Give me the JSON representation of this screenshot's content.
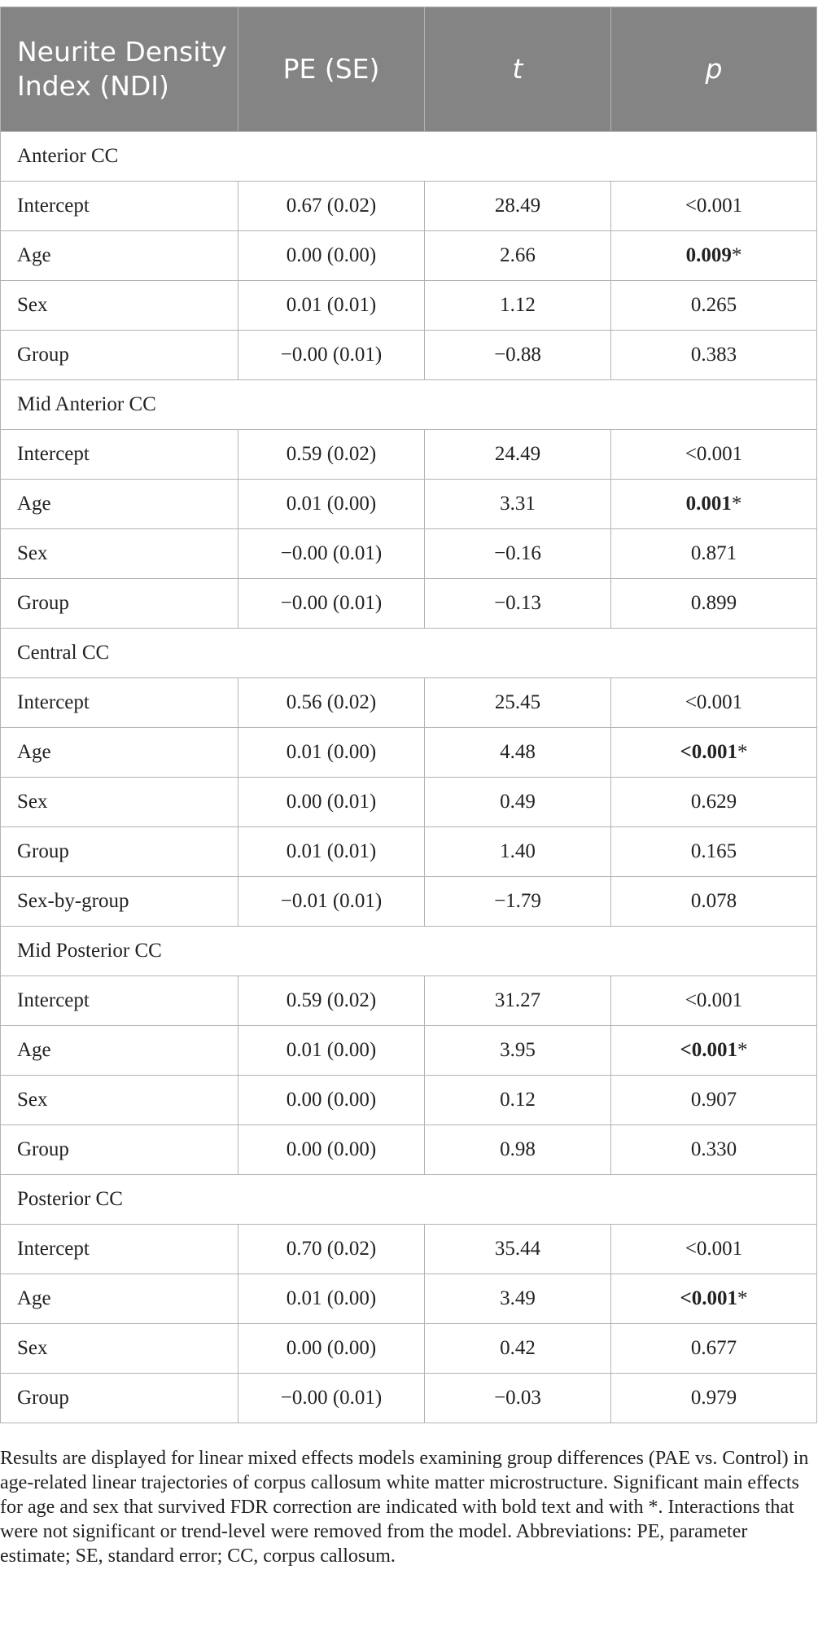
{
  "table": {
    "headers": [
      "Neurite Density Index (NDI)",
      "PE (SE)",
      "t",
      "p"
    ],
    "sections": [
      {
        "name": "Anterior CC",
        "rows": [
          {
            "term": "Intercept",
            "pe": "0.67 (0.02)",
            "t": "28.49",
            "p": "<0.001",
            "sig": false
          },
          {
            "term": "Age",
            "pe": "0.00 (0.00)",
            "t": "2.66",
            "p": "0.009",
            "sig": true
          },
          {
            "term": "Sex",
            "pe": "0.01 (0.01)",
            "t": "1.12",
            "p": "0.265",
            "sig": false
          },
          {
            "term": "Group",
            "pe": "−0.00 (0.01)",
            "t": "−0.88",
            "p": "0.383",
            "sig": false
          }
        ]
      },
      {
        "name": "Mid Anterior CC",
        "rows": [
          {
            "term": "Intercept",
            "pe": "0.59 (0.02)",
            "t": "24.49",
            "p": "<0.001",
            "sig": false
          },
          {
            "term": "Age",
            "pe": "0.01 (0.00)",
            "t": "3.31",
            "p": "0.001",
            "sig": true
          },
          {
            "term": "Sex",
            "pe": "−0.00 (0.01)",
            "t": "−0.16",
            "p": "0.871",
            "sig": false
          },
          {
            "term": "Group",
            "pe": "−0.00 (0.01)",
            "t": "−0.13",
            "p": "0.899",
            "sig": false
          }
        ]
      },
      {
        "name": "Central CC",
        "rows": [
          {
            "term": "Intercept",
            "pe": "0.56 (0.02)",
            "t": "25.45",
            "p": "<0.001",
            "sig": false
          },
          {
            "term": "Age",
            "pe": "0.01 (0.00)",
            "t": "4.48",
            "p": "<0.001",
            "sig": true
          },
          {
            "term": "Sex",
            "pe": "0.00 (0.01)",
            "t": "0.49",
            "p": "0.629",
            "sig": false
          },
          {
            "term": "Group",
            "pe": "0.01 (0.01)",
            "t": "1.40",
            "p": "0.165",
            "sig": false
          },
          {
            "term": "Sex-by-group",
            "pe": "−0.01 (0.01)",
            "t": "−1.79",
            "p": "0.078",
            "sig": false
          }
        ]
      },
      {
        "name": "Mid Posterior CC",
        "rows": [
          {
            "term": "Intercept",
            "pe": "0.59 (0.02)",
            "t": "31.27",
            "p": "<0.001",
            "sig": false
          },
          {
            "term": "Age",
            "pe": "0.01 (0.00)",
            "t": "3.95",
            "p": "<0.001",
            "sig": true
          },
          {
            "term": "Sex",
            "pe": "0.00 (0.00)",
            "t": "0.12",
            "p": "0.907",
            "sig": false
          },
          {
            "term": "Group",
            "pe": "0.00 (0.00)",
            "t": "0.98",
            "p": "0.330",
            "sig": false
          }
        ]
      },
      {
        "name": "Posterior CC",
        "rows": [
          {
            "term": "Intercept",
            "pe": "0.70 (0.02)",
            "t": "35.44",
            "p": "<0.001",
            "sig": false
          },
          {
            "term": "Age",
            "pe": "0.01 (0.00)",
            "t": "3.49",
            "p": "<0.001",
            "sig": true
          },
          {
            "term": "Sex",
            "pe": "0.00 (0.00)",
            "t": "0.42",
            "p": "0.677",
            "sig": false
          },
          {
            "term": "Group",
            "pe": "−0.00 (0.01)",
            "t": "−0.03",
            "p": "0.979",
            "sig": false
          }
        ]
      }
    ],
    "sig_marker": "*"
  },
  "footnote": "Results are displayed for linear mixed effects models examining group differences (PAE vs. Control) in age-related linear trajectories of corpus callosum white matter microstructure. Significant main effects for age and sex that survived FDR correction are indicated with bold text and with *. Interactions that were not significant or trend-level were removed from the model. Abbreviations: PE, parameter estimate; SE, standard error; CC, corpus callosum."
}
